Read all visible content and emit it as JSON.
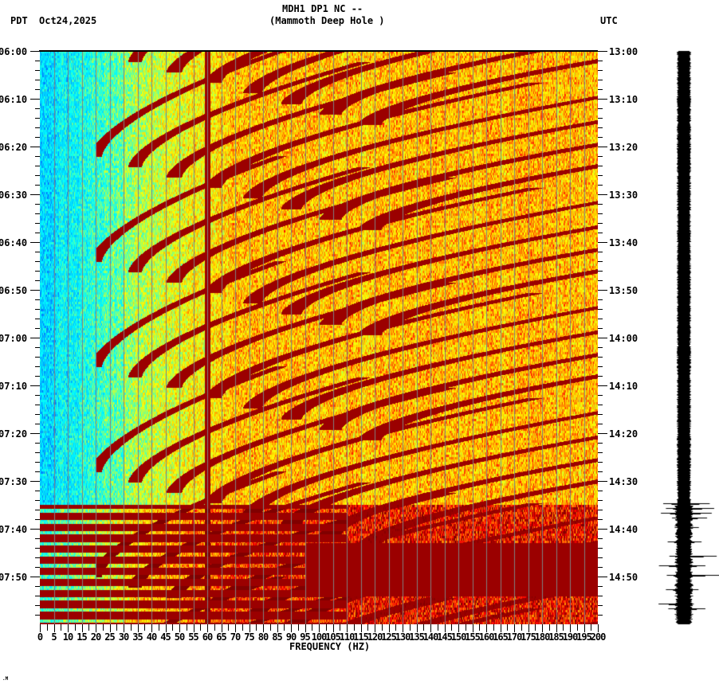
{
  "header": {
    "title_line1": "MDH1 DP1 NC --",
    "title_line2": "(Mammoth Deep Hole )",
    "left_timezone": "PDT",
    "date": "Oct24,2025",
    "right_timezone": "UTC"
  },
  "footer_mark": ".M",
  "chart_data": {
    "type": "heatmap",
    "title": "MDH1 DP1 NC -- (Mammoth Deep Hole )",
    "subtitle": "Oct24,2025",
    "xlabel": "FREQUENCY (HZ)",
    "ylabel_left": "PDT",
    "ylabel_right": "UTC",
    "x_range_hz": [
      0,
      200
    ],
    "x_tick_step_hz": 5,
    "x_ticks": [
      "0",
      "5",
      "10",
      "15",
      "20",
      "25",
      "30",
      "35",
      "40",
      "45",
      "50",
      "55",
      "60",
      "65",
      "70",
      "75",
      "80",
      "85",
      "90",
      "95",
      "100",
      "105",
      "110",
      "115",
      "120",
      "125",
      "130",
      "135",
      "140",
      "145",
      "150",
      "155",
      "160",
      "165",
      "170",
      "175",
      "180",
      "185",
      "190",
      "195",
      "200"
    ],
    "y_range_pdt": [
      "06:00",
      "08:00"
    ],
    "y_ticks_left_pdt": [
      "06:00",
      "06:10",
      "06:20",
      "06:30",
      "06:40",
      "06:50",
      "07:00",
      "07:10",
      "07:20",
      "07:30",
      "07:40",
      "07:50"
    ],
    "y_ticks_right_utc": [
      "13:00",
      "13:10",
      "13:20",
      "13:30",
      "13:40",
      "13:50",
      "14:00",
      "14:10",
      "14:20",
      "14:30",
      "14:40",
      "14:50"
    ],
    "minor_tick_minutes": 2,
    "grid": "vertical lines every 5 Hz",
    "colormap": [
      "#0050ff",
      "#00c8ff",
      "#00ffff",
      "#80ff80",
      "#ffff00",
      "#ffa500",
      "#ff0000",
      "#800000"
    ],
    "features": {
      "low_freq_quiet_band_hz": [
        0,
        30
      ],
      "persistent_line_hz": 60,
      "arc_sweeps_period_min": 22,
      "arc_sweep_starts_min": [
        0,
        6,
        12,
        28,
        50,
        72,
        94
      ],
      "broadband_event_minutes": [
        95,
        120
      ],
      "broadband_event_freq_hz": [
        0,
        200
      ],
      "event_strong_band_hz": [
        95,
        200
      ],
      "event_strong_minutes": [
        103,
        114
      ]
    },
    "side_trace": {
      "type": "seismogram",
      "quiet_until_minute": 95,
      "spikes_minutes": [
        95,
        96,
        97,
        98,
        100,
        103,
        106,
        108,
        110,
        113,
        116,
        117
      ]
    }
  }
}
